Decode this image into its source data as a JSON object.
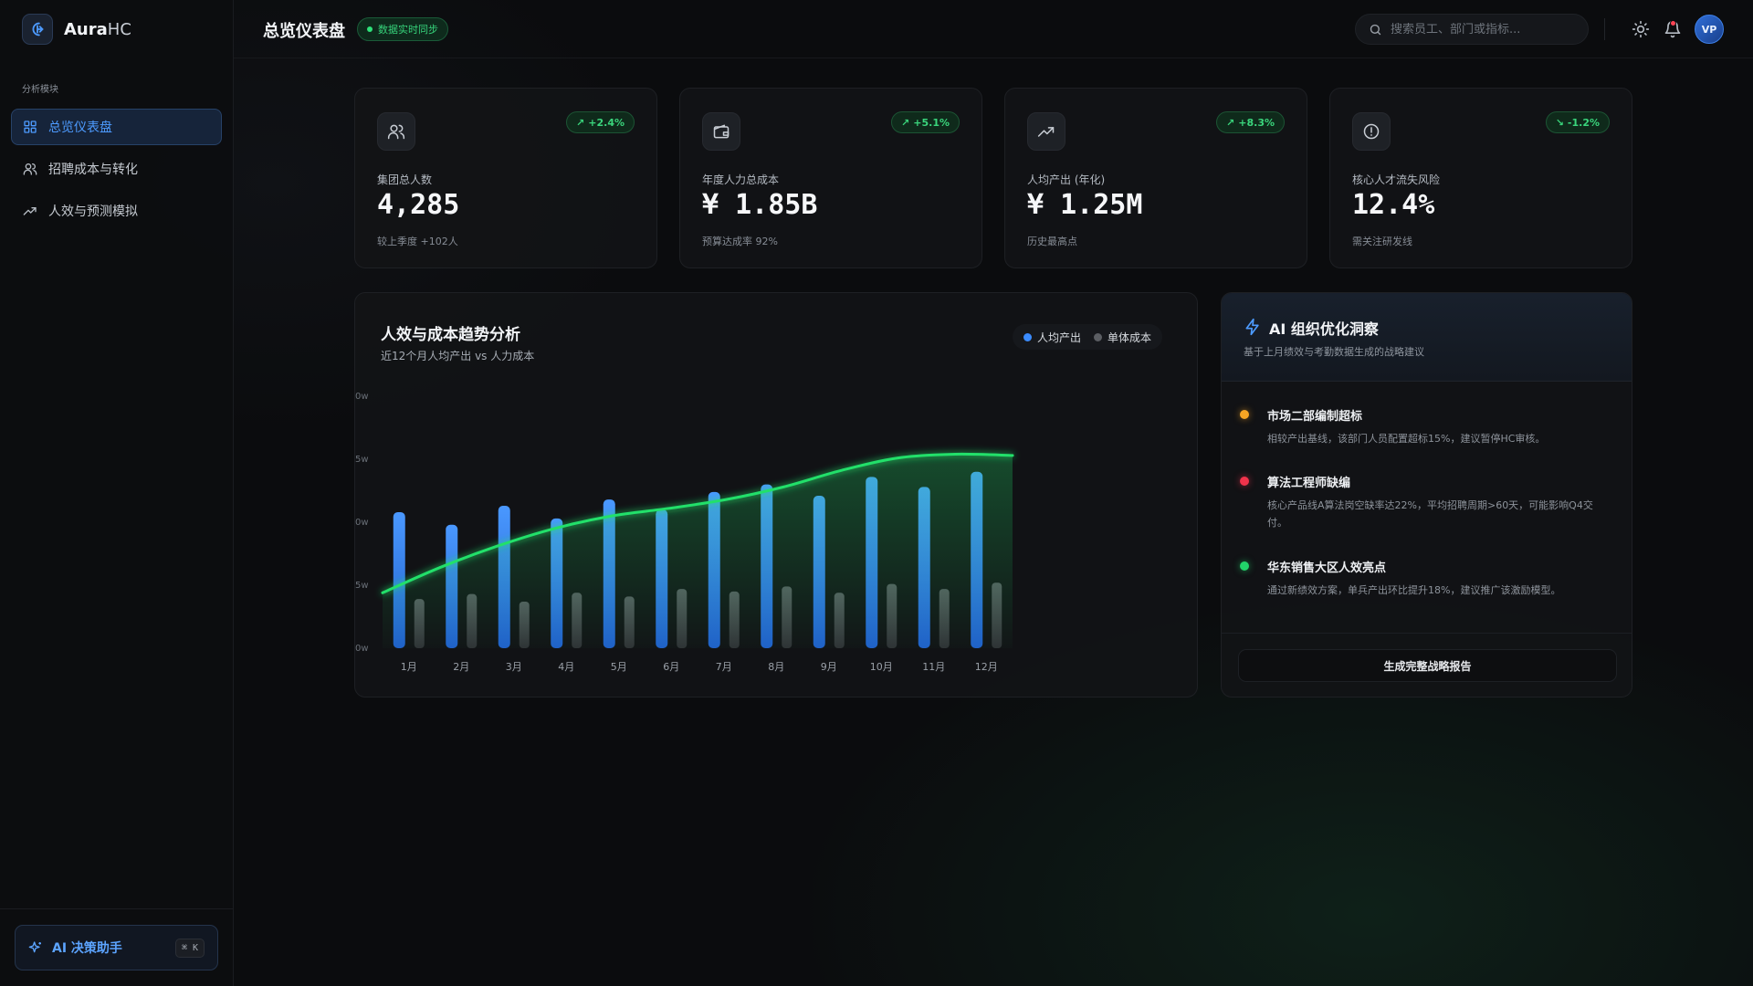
{
  "app": {
    "name_bold": "Aura",
    "name_light": "HC"
  },
  "sidebar": {
    "section_label": "分析模块",
    "items": [
      {
        "label": "总览仪表盘",
        "icon": "grid-icon",
        "active": true
      },
      {
        "label": "招聘成本与转化",
        "icon": "users-icon",
        "active": false
      },
      {
        "label": "人效与预测模拟",
        "icon": "trend-icon",
        "active": false
      }
    ],
    "assistant": {
      "label": "AI 决策助手",
      "shortcut": "⌘ K"
    }
  },
  "header": {
    "title": "总览仪表盘",
    "sync_badge": "数据实时同步",
    "search_placeholder": "搜索员工、部门或指标...",
    "avatar": "VP"
  },
  "kpis": [
    {
      "label": "集团总人数",
      "value": "4,285",
      "badge": "+2.4%",
      "trend": "up",
      "sub": "较上季度 +102人",
      "icon": "users-icon"
    },
    {
      "label": "年度人力总成本",
      "value": "¥ 1.85B",
      "badge": "+5.1%",
      "trend": "up",
      "sub": "预算达成率 92%",
      "icon": "wallet-icon"
    },
    {
      "label": "人均产出 (年化)",
      "value": "¥ 1.25M",
      "badge": "+8.3%",
      "trend": "up",
      "sub": "历史最高点",
      "icon": "trend-icon"
    },
    {
      "label": "核心人才流失风险",
      "value": "12.4%",
      "badge": "-1.2%",
      "trend": "down",
      "sub": "需关注研发线",
      "icon": "alert-icon"
    }
  ],
  "chart_data": {
    "type": "bar",
    "title": "人效与成本趋势分析",
    "subtitle": "近12个月人均产出 vs 人力成本",
    "categories": [
      "1月",
      "2月",
      "3月",
      "4月",
      "5月",
      "6月",
      "7月",
      "8月",
      "9月",
      "10月",
      "11月",
      "12月"
    ],
    "y_ticks": [
      "0w",
      "5w",
      "0w",
      "5w",
      "0w"
    ],
    "ylim": [
      0,
      20
    ],
    "series": [
      {
        "name": "人均产出",
        "color": "#3b8cff",
        "values": [
          10.8,
          9.8,
          11.3,
          10.3,
          11.8,
          11.0,
          12.4,
          13.0,
          12.1,
          13.6,
          12.8,
          14.0
        ]
      },
      {
        "name": "单体成本",
        "color": "#4a4c50",
        "values": [
          3.9,
          4.3,
          3.7,
          4.4,
          4.1,
          4.7,
          4.5,
          4.9,
          4.4,
          5.1,
          4.7,
          5.2
        ]
      }
    ],
    "trend_line": {
      "color": "#22e06a",
      "values": [
        4.4,
        6.4,
        8.1,
        9.5,
        10.5,
        11.1,
        11.8,
        12.8,
        14.1,
        15.1,
        15.4,
        15.3
      ]
    },
    "legend_position": "top-right"
  },
  "ai_panel": {
    "title": "AI 组织优化洞察",
    "subtitle": "基于上月绩效与考勤数据生成的战略建议",
    "insights": [
      {
        "title": "市场二部编制超标",
        "desc": "相较产出基线，该部门人员配置超标15%，建议暂停HC审核。",
        "color": "#f5a524"
      },
      {
        "title": "算法工程师缺编",
        "desc": "核心产品线A算法岗空缺率达22%，平均招聘周期>60天，可能影响Q4交付。",
        "color": "#f0334b"
      },
      {
        "title": "华东销售大区人效亮点",
        "desc": "通过新绩效方案，单兵产出环比提升18%，建议推广该激励模型。",
        "color": "#22d36a"
      }
    ],
    "button": "生成完整战略报告"
  }
}
